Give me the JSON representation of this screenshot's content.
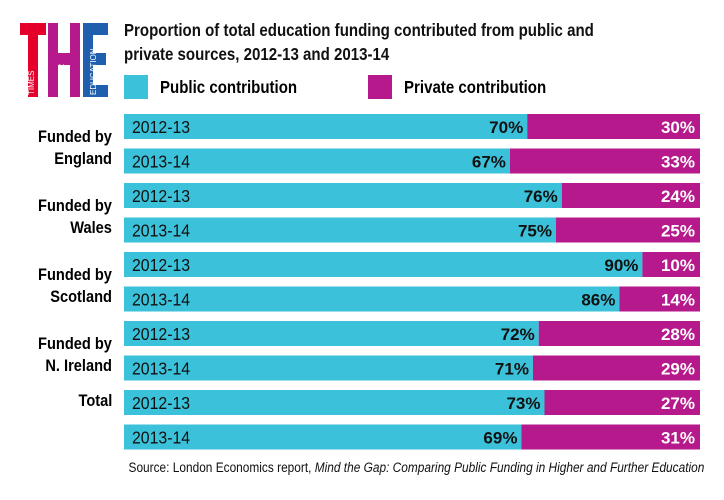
{
  "logo": {
    "text": "THE",
    "words": [
      "TIMES",
      "HIGHER",
      "EDUCATION"
    ],
    "colors": [
      "#e4002b",
      "#b5198b",
      "#1f5fae"
    ]
  },
  "chart_data": {
    "type": "bar",
    "stacked": true,
    "orientation": "horizontal",
    "title": "Proportion of total education funding contributed from public and private sources, 2012-13 and 2013-14",
    "title_lines": [
      "Proportion of total education funding contributed from public and",
      "private sources, 2012-13 and 2013-14"
    ],
    "legend": [
      "Public contribution",
      "Private contribution"
    ],
    "colors": {
      "public": "#3bc1d9",
      "private": "#b5198b"
    },
    "xlim": [
      0,
      100
    ],
    "groups": [
      {
        "label_lines": [
          "Funded by",
          "England"
        ],
        "rows": [
          {
            "year": "2012-13",
            "public": 70,
            "private": 30
          },
          {
            "year": "2013-14",
            "public": 67,
            "private": 33
          }
        ]
      },
      {
        "label_lines": [
          "Funded by",
          "Wales"
        ],
        "rows": [
          {
            "year": "2012-13",
            "public": 76,
            "private": 24
          },
          {
            "year": "2013-14",
            "public": 75,
            "private": 25
          }
        ]
      },
      {
        "label_lines": [
          "Funded by",
          "Scotland"
        ],
        "rows": [
          {
            "year": "2012-13",
            "public": 90,
            "private": 10
          },
          {
            "year": "2013-14",
            "public": 86,
            "private": 14
          }
        ]
      },
      {
        "label_lines": [
          "Funded by",
          "N. Ireland"
        ],
        "rows": [
          {
            "year": "2012-13",
            "public": 72,
            "private": 28
          },
          {
            "year": "2013-14",
            "public": 71,
            "private": 29
          }
        ]
      },
      {
        "label_lines": [
          "Total"
        ],
        "rows": [
          {
            "year": "2012-13",
            "public": 73,
            "private": 27
          },
          {
            "year": "2013-14",
            "public": 69,
            "private": 31
          }
        ]
      }
    ]
  },
  "source": {
    "prefix": "Source: London Economics report, ",
    "italic": "Mind the Gap: Comparing Public Funding in Higher and Further Education"
  }
}
